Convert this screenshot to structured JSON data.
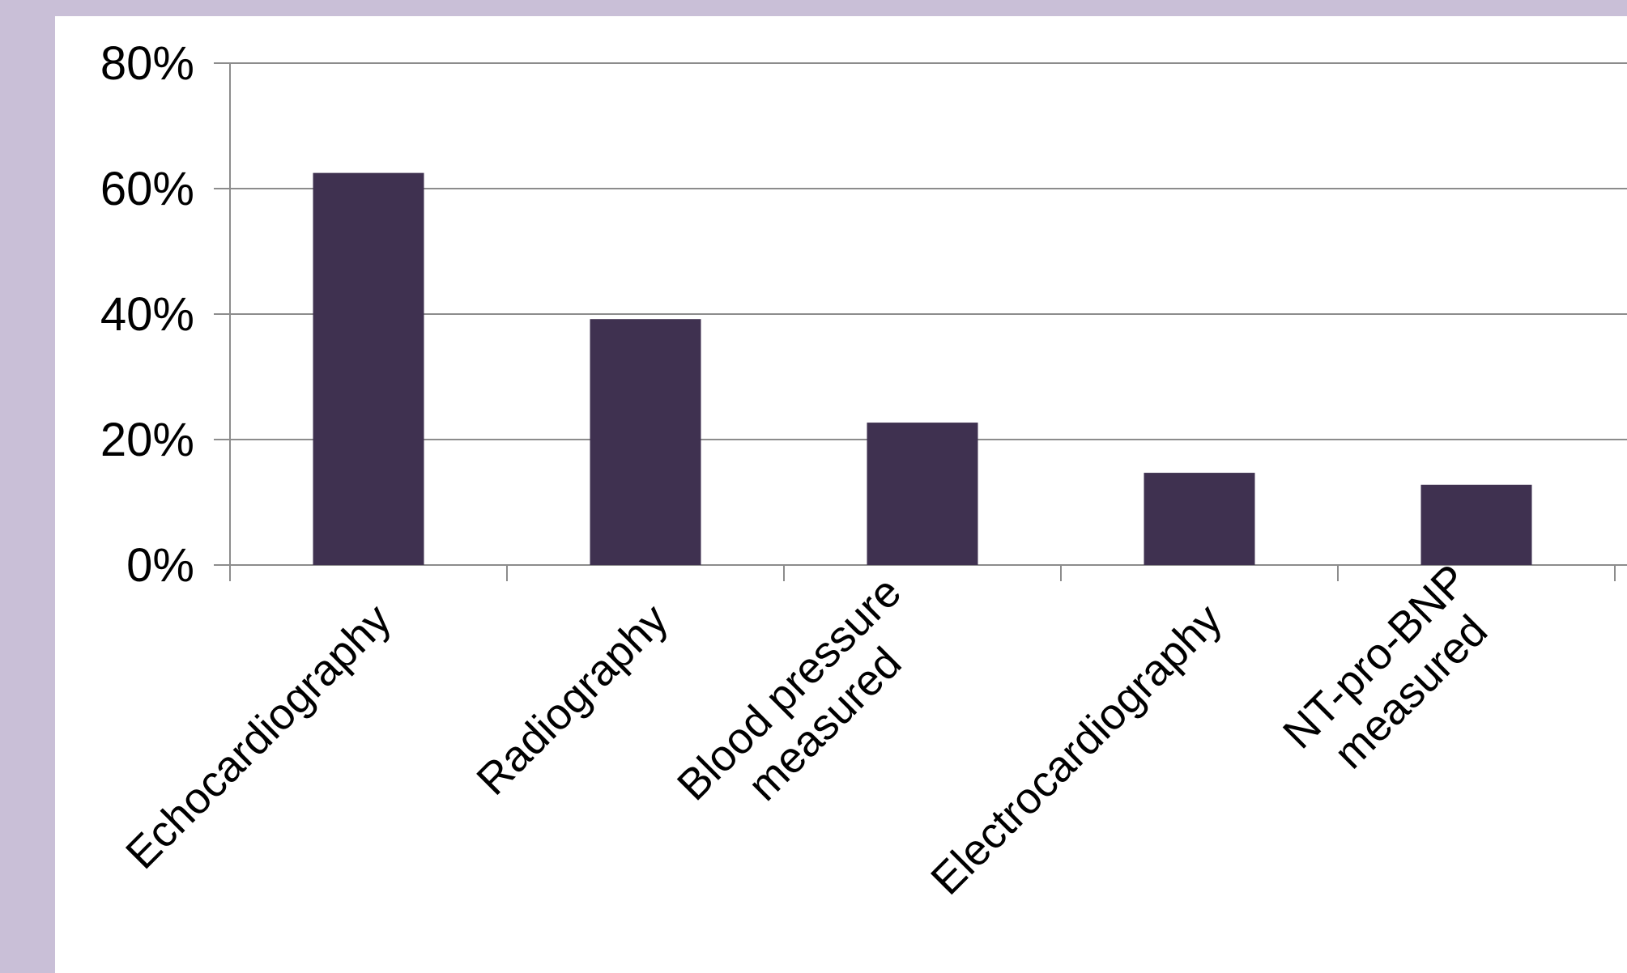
{
  "colors": {
    "page_background": "#c9bfd7",
    "panel_background": "#ffffff",
    "bar": "#3f3150",
    "grid": "#8c8c8c",
    "text": "#000000"
  },
  "chart_data": {
    "type": "bar",
    "title": "",
    "xlabel": "",
    "ylabel": "",
    "categories": [
      [
        "Echocardiography"
      ],
      [
        "Radiography"
      ],
      [
        "Blood pressure",
        "measured"
      ],
      [
        "Electrocardiography"
      ],
      [
        "NT-pro-BNP",
        "measured"
      ]
    ],
    "values": [
      62.5,
      39.2,
      22.7,
      14.7,
      12.8
    ],
    "ylim": [
      0,
      80
    ],
    "yticks": [
      0,
      20,
      40,
      60,
      80
    ],
    "ytick_labels": [
      "0%",
      "20%",
      "40%",
      "60%",
      "80%"
    ],
    "grid": true,
    "legend": "none"
  }
}
